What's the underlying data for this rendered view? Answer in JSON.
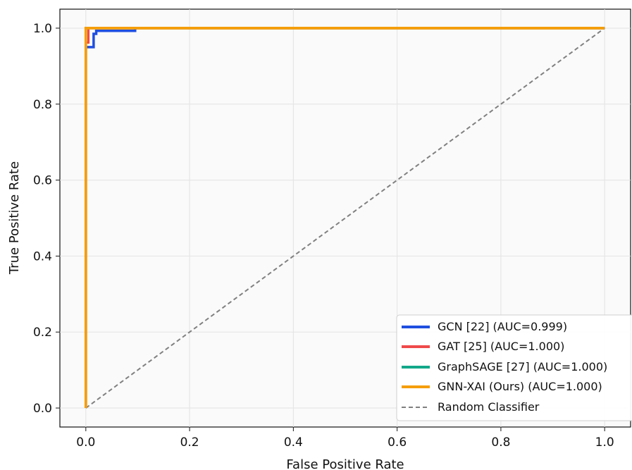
{
  "chart_data": {
    "type": "line",
    "title": "",
    "xlabel": "False Positive Rate",
    "ylabel": "True Positive Rate",
    "xlim": [
      -0.05,
      1.05
    ],
    "ylim": [
      -0.05,
      1.05
    ],
    "xticks": [
      0.0,
      0.2,
      0.4,
      0.6,
      0.8,
      1.0
    ],
    "yticks": [
      0.0,
      0.2,
      0.4,
      0.6,
      0.8,
      1.0
    ],
    "xtick_labels": [
      "0.0",
      "0.2",
      "0.4",
      "0.6",
      "0.8",
      "1.0"
    ],
    "ytick_labels": [
      "0.0",
      "0.2",
      "0.4",
      "0.6",
      "0.8",
      "1.0"
    ],
    "grid": true,
    "legend_position": "bottom-right",
    "series": [
      {
        "name": "GCN [22] (AUC=0.999)",
        "color": "#1f4fe0",
        "points": [
          [
            0.0,
            0.0
          ],
          [
            0.0,
            0.95
          ],
          [
            0.015,
            0.95
          ],
          [
            0.015,
            0.985
          ],
          [
            0.02,
            0.985
          ],
          [
            0.02,
            0.993
          ],
          [
            0.095,
            0.993
          ],
          [
            0.095,
            1.0
          ],
          [
            1.0,
            1.0
          ]
        ]
      },
      {
        "name": "GAT [25] (AUC=1.000)",
        "color": "#f04a4a",
        "points": [
          [
            0.0,
            0.0
          ],
          [
            0.0,
            0.962
          ],
          [
            0.005,
            0.962
          ],
          [
            0.005,
            1.0
          ],
          [
            1.0,
            1.0
          ]
        ]
      },
      {
        "name": "GraphSAGE [27] (AUC=1.000)",
        "color": "#13a88a",
        "points": [
          [
            0.0,
            0.0
          ],
          [
            0.0,
            1.0
          ],
          [
            1.0,
            1.0
          ]
        ]
      },
      {
        "name": "GNN-XAI (Ours) (AUC=1.000)",
        "color": "#f59e0b",
        "points": [
          [
            0.0,
            0.0
          ],
          [
            0.0,
            1.0
          ],
          [
            1.0,
            1.0
          ]
        ]
      }
    ],
    "reference_line": {
      "name": "Random Classifier",
      "color": "#808080",
      "points": [
        [
          0.0,
          0.0
        ],
        [
          1.0,
          1.0
        ]
      ]
    }
  }
}
